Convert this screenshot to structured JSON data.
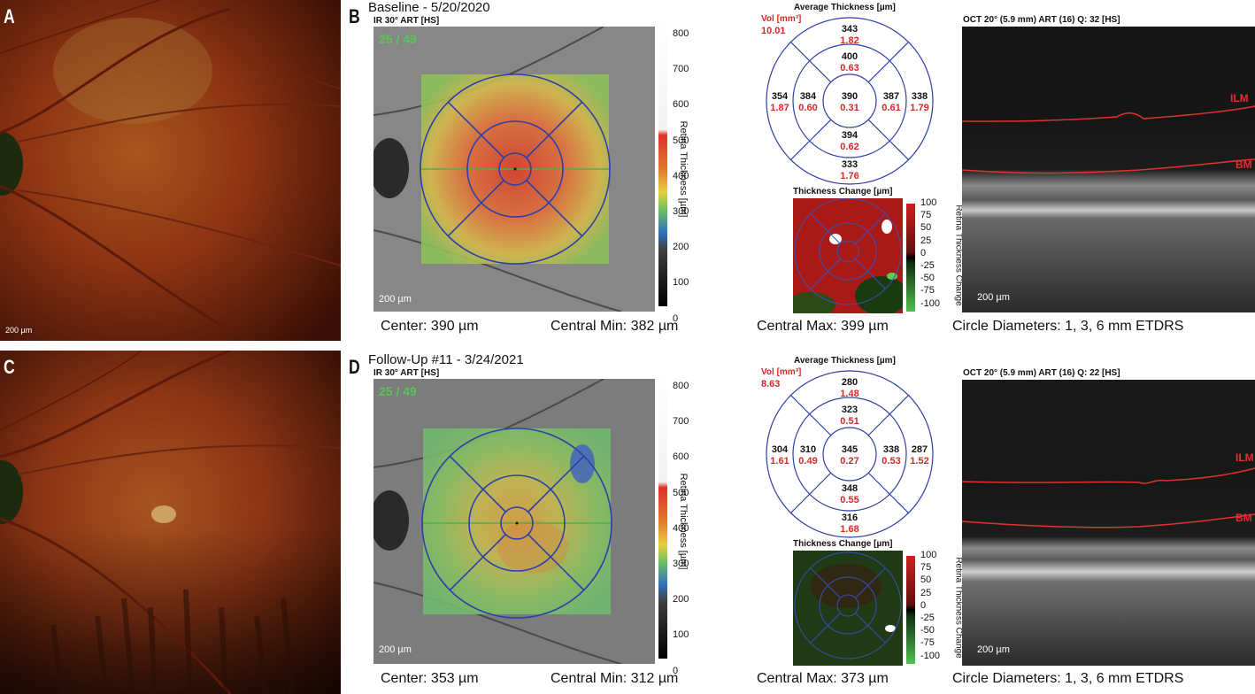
{
  "panels": {
    "A": "A",
    "B": "B",
    "C": "C",
    "D": "D"
  },
  "fundus": {
    "scale_top": "200 µm",
    "scale_bottom": ""
  },
  "baseline": {
    "title": "Baseline - 5/20/2020",
    "ir_label": "IR 30° ART [HS]",
    "ir_counter": "25 / 49",
    "scale": "200 µm",
    "cbar_ticks": [
      "800",
      "700",
      "600",
      "500",
      "400",
      "300",
      "200",
      "100",
      "0"
    ],
    "cbar_title": "Retina Thickness [µm]",
    "center": "Center: 390 µm",
    "central_min": "Central Min: 382 µm",
    "central_max": "Central Max: 399 µm",
    "avg_title": "Average Thickness [µm]",
    "vol_label": "Vol [mm³]",
    "vol_value": "10.01",
    "etdrs": {
      "center": [
        "390",
        "0.31"
      ],
      "inner_top": [
        "400",
        "0.63"
      ],
      "inner_right": [
        "387",
        "0.61"
      ],
      "inner_bottom": [
        "394",
        "0.62"
      ],
      "inner_left": [
        "384",
        "0.60"
      ],
      "outer_top": [
        "343",
        "1.82"
      ],
      "outer_right": [
        "338",
        "1.79"
      ],
      "outer_bottom": [
        "333",
        "1.76"
      ],
      "outer_left": [
        "354",
        "1.87"
      ]
    },
    "change_title": "Thickness Change [µm]",
    "change_ticks": [
      "100",
      "75",
      "50",
      "25",
      "0",
      "-25",
      "-50",
      "-75",
      "-100"
    ],
    "change_axis": "Retina Thickness Change",
    "oct_label": "OCT 20° (5.9 mm) ART (16) Q: 32 [HS]",
    "oct_scale": "200 µm",
    "ilm": "ILM",
    "bm": "BM",
    "circle_diam": "Circle Diameters:  1, 3, 6 mm ETDRS"
  },
  "followup": {
    "title": "Follow-Up #11 - 3/24/2021",
    "ir_label": "IR 30° ART [HS]",
    "ir_counter": "25 / 49",
    "scale": "200 µm",
    "cbar_ticks": [
      "800",
      "700",
      "600",
      "500",
      "400",
      "300",
      "200",
      "100",
      "0"
    ],
    "cbar_title": "Retina Thickness [µm]",
    "center": "Center: 353 µm",
    "central_min": "Central Min: 312 µm",
    "central_max": "Central Max: 373 µm",
    "avg_title": "Average Thickness [µm]",
    "vol_label": "Vol [mm³]",
    "vol_value": "8.63",
    "etdrs": {
      "center": [
        "345",
        "0.27"
      ],
      "inner_top": [
        "323",
        "0.51"
      ],
      "inner_right": [
        "338",
        "0.53"
      ],
      "inner_bottom": [
        "348",
        "0.55"
      ],
      "inner_left": [
        "310",
        "0.49"
      ],
      "outer_top": [
        "280",
        "1.48"
      ],
      "outer_right": [
        "287",
        "1.52"
      ],
      "outer_bottom": [
        "316",
        "1.68"
      ],
      "outer_left": [
        "304",
        "1.61"
      ]
    },
    "change_title": "Thickness Change [µm]",
    "change_ticks": [
      "100",
      "75",
      "50",
      "25",
      "0",
      "-25",
      "-50",
      "-75",
      "-100"
    ],
    "change_axis": "Retina Thickness Change",
    "oct_label": "OCT 20° (5.9 mm) ART (16) Q: 22 [HS]",
    "oct_scale": "200 µm",
    "ilm": "ILM",
    "bm": "BM",
    "circle_diam": "Circle Diameters:  1, 3, 6 mm ETDRS"
  }
}
